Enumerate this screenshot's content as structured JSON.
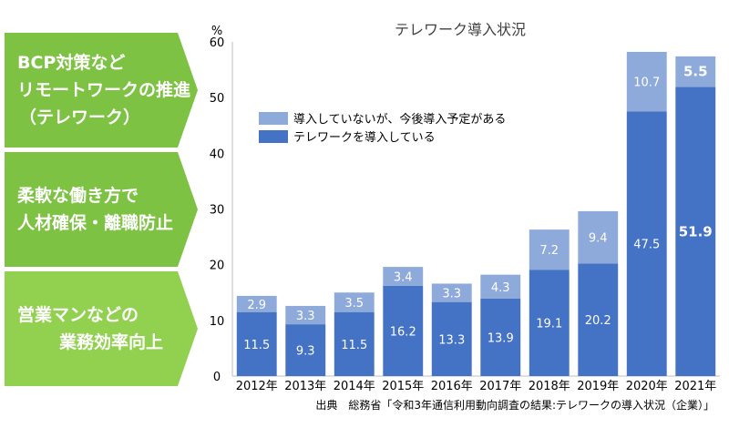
{
  "callouts": [
    {
      "lines": [
        "BCP対策など",
        "リモートワークの推進",
        "（テレワーク）"
      ]
    },
    {
      "lines": [
        "柔軟な働き方で",
        "人材確保・離職防止"
      ]
    },
    {
      "lines": [
        "営業マンなどの",
        "業務効率向上"
      ]
    }
  ],
  "source": "出典　総務省「令和3年通信利用動向調査の結果:テレワークの導入状況（企業）」",
  "colors": {
    "dark": "#4472c4",
    "light": "#8eaadb",
    "callout": "#7dc242"
  },
  "chart_data": {
    "type": "bar",
    "stacked": true,
    "title": "テレワーク導入状況",
    "ylabel": "%",
    "ylim": [
      0,
      60
    ],
    "yticks": [
      0,
      10,
      20,
      30,
      40,
      50,
      60
    ],
    "categories": [
      "2012年",
      "2013年",
      "2014年",
      "2015年",
      "2016年",
      "2017年",
      "2018年",
      "2019年",
      "2020年",
      "2021年"
    ],
    "series": [
      {
        "name": "テレワークを導入している",
        "values": [
          11.5,
          9.3,
          11.5,
          16.2,
          13.3,
          13.9,
          19.1,
          20.2,
          47.5,
          51.9
        ],
        "color": "#4472c4"
      },
      {
        "name": "導入していないが、今後導入予定がある",
        "values": [
          2.9,
          3.3,
          3.5,
          3.4,
          3.3,
          4.3,
          7.2,
          9.4,
          10.7,
          5.5
        ],
        "color": "#8eaadb"
      }
    ],
    "legend": "top-left",
    "grid": false
  }
}
